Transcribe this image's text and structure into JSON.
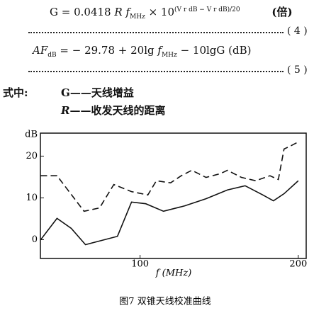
{
  "equations": [
    {
      "lhs": "G = 0.0418",
      "r": "R",
      "f": "f",
      "f_sub": "MHz",
      "times": "× 10",
      "exp": "(V r dB − V r dB)/20",
      "unit": "(倍)",
      "number": "( 4 )"
    },
    {
      "lhs": "AF",
      "lhs_sub": "dB",
      "mid": "= − 29.78 + 20lg",
      "f": "f",
      "f_sub": "MHz",
      "rest": "− 10lgG (dB)",
      "number": "( 5 )"
    }
  ],
  "where": {
    "label": "式中:",
    "items": [
      {
        "sym": "G",
        "text": "——天线增益"
      },
      {
        "sym": "R",
        "text": "——收发天线的距离"
      }
    ]
  },
  "chart_data": {
    "type": "line",
    "ylabel": "dB",
    "xlabel": "f (MHz)",
    "caption": "图7  双锥天线校准曲线",
    "xlim": [
      37,
      205
    ],
    "xticks": [
      100,
      200
    ],
    "ylim": [
      -4.5,
      25.5
    ],
    "yticks": [
      0,
      10,
      20
    ],
    "series": [
      {
        "color": "#111",
        "dash": true,
        "x": [
          37.2,
          47.5,
          64.6,
          74.4,
          83.4,
          94.6,
          104.9,
          110.3,
          119.3,
          126,
          132.7,
          141.7,
          150.7,
          155.2,
          164.1,
          173.1,
          182.1,
          187.4,
          191,
          195.5,
          200
        ],
        "values": [
          15.3,
          15.3,
          6.8,
          7.6,
          13.2,
          11.5,
          10.7,
          14.1,
          13.6,
          15.3,
          16.6,
          14.9,
          15.8,
          16.6,
          14.9,
          14.1,
          15.3,
          14.4,
          21.7,
          22.5,
          23.4
        ]
      },
      {
        "color": "#111",
        "dash": false,
        "x": [
          37.2,
          47.5,
          56.5,
          65.5,
          85.7,
          94.6,
          103.6,
          114.8,
          128.3,
          141.7,
          155.2,
          166.4,
          177.6,
          184.3,
          191,
          200
        ],
        "values": [
          0,
          5.1,
          2.7,
          -1.2,
          0.8,
          9.0,
          8.6,
          6.8,
          8.1,
          9.8,
          11.9,
          12.9,
          10.7,
          9.3,
          11.0,
          14.1
        ]
      }
    ]
  }
}
